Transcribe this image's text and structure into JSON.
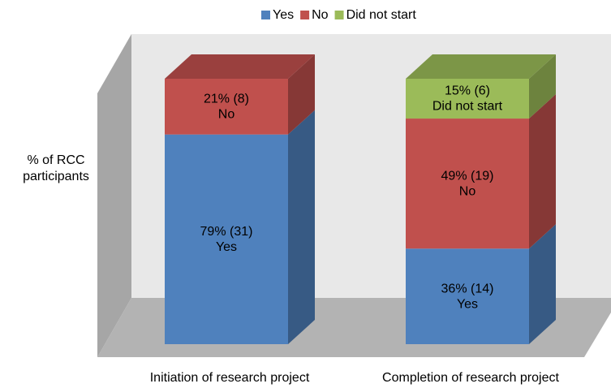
{
  "chart_data": {
    "type": "bar",
    "stacked": true,
    "y_label": "% of RCC participants",
    "categories": [
      "Initiation of research project",
      "Completion of research project"
    ],
    "ylim": [
      0,
      100
    ],
    "legend": "top",
    "series": [
      {
        "name": "Yes",
        "color": "#4f81bd",
        "values": [
          79,
          36
        ],
        "value_labels": [
          "79% (31)",
          "36% (14)"
        ]
      },
      {
        "name": "No",
        "color": "#c0504d",
        "values": [
          21,
          49
        ],
        "value_labels": [
          "21% (8)",
          "49% (19)"
        ]
      },
      {
        "name": "Did not start",
        "color": "#9bbb59",
        "values": [
          0,
          15
        ],
        "value_labels": [
          null,
          "15% (6)"
        ]
      }
    ]
  }
}
